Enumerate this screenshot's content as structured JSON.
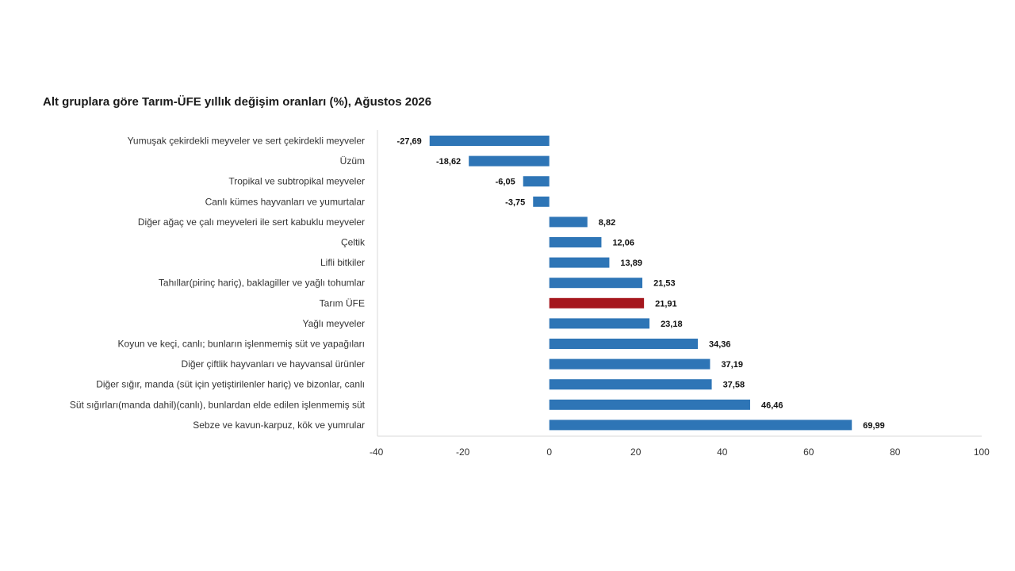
{
  "chart_data": {
    "type": "bar",
    "orientation": "horizontal",
    "title": "Alt gruplara göre Tarım-ÜFE yıllık değişim oranları (%), Ağustos 2026",
    "xlabel": "",
    "ylabel": "",
    "xlim": [
      -40,
      100
    ],
    "xticks": [
      -40,
      -20,
      0,
      20,
      40,
      60,
      80,
      100
    ],
    "grid": false,
    "categories": [
      "Yumuşak çekirdekli meyveler ve sert çekirdekli meyveler",
      "Üzüm",
      "Tropikal ve subtropikal meyveler",
      "Canlı kümes hayvanları ve yumurtalar",
      "Diğer ağaç ve çalı meyveleri ile sert kabuklu meyveler",
      "Çeltik",
      "Lifli bitkiler",
      "Tahıllar(pirinç hariç), baklagiller ve yağlı tohumlar",
      "Tarım ÜFE",
      "Yağlı meyveler",
      "Koyun ve keçi, canlı; bunların işlenmemiş süt ve yapağıları",
      "Diğer çiftlik hayvanları ve hayvansal ürünler",
      "Diğer sığır, manda (süt için yetiştirilenler hariç) ve bizonlar, canlı",
      "Süt sığırları(manda dahil)(canlı), bunlardan elde edilen işlenmemiş süt",
      "Sebze ve kavun-karpuz, kök ve yumrular"
    ],
    "values": [
      -27.69,
      -18.62,
      -6.05,
      -3.75,
      8.82,
      12.06,
      13.89,
      21.53,
      21.91,
      23.18,
      34.36,
      37.19,
      37.58,
      46.46,
      69.99
    ],
    "value_labels": [
      "-27,69",
      "-18,62",
      "-6,05",
      "-3,75",
      "8,82",
      "12,06",
      "13,89",
      "21,53",
      "21,91",
      "23,18",
      "34,36",
      "37,19",
      "37,58",
      "46,46",
      "69,99"
    ],
    "tick_labels": [
      "-40",
      "-20",
      "0",
      "20",
      "40",
      "60",
      "80",
      "100"
    ],
    "highlight_category": "Tarım ÜFE",
    "colors": {
      "bar": "#2e75b6",
      "highlight": "#a5161d",
      "axis": "#d9d9d9"
    }
  }
}
